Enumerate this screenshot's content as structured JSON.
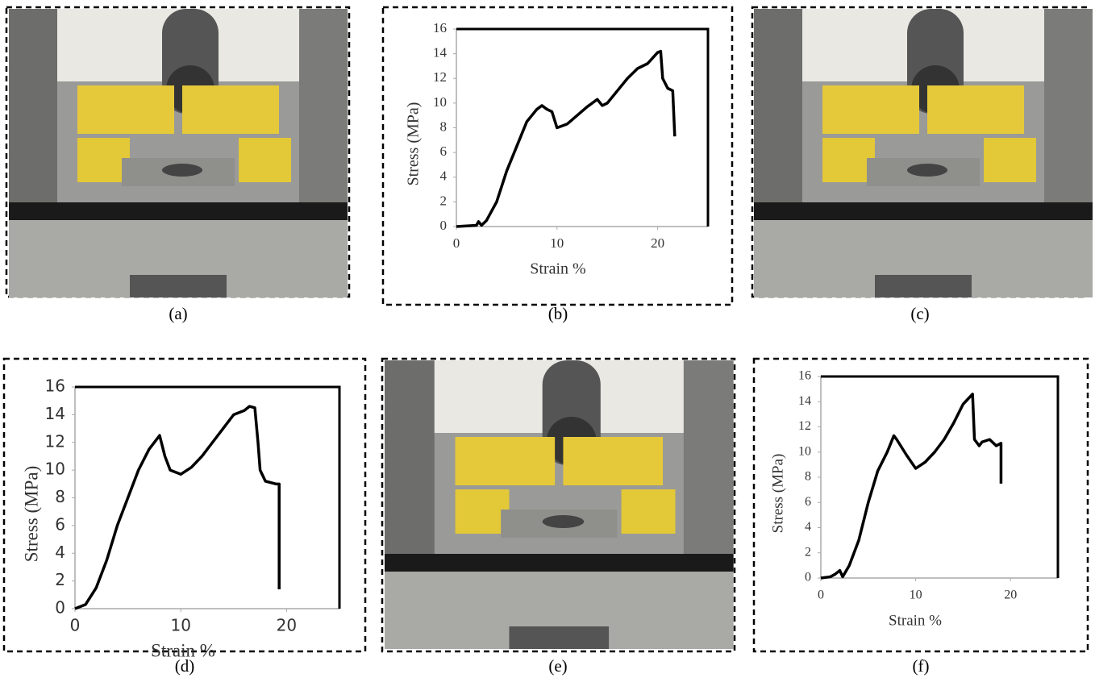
{
  "captions": [
    "(a)",
    "(b)",
    "(c)",
    "(d)",
    "(e)",
    "(f)"
  ],
  "chart_data": [
    {
      "type": "line",
      "xlabel": "Strain %",
      "ylabel": "Stress (MPa)",
      "color": "#000000",
      "xlim": [
        0,
        25
      ],
      "ylim": [
        0,
        16
      ],
      "xticks": [
        0,
        10,
        20
      ],
      "yticks": [
        0,
        2,
        4,
        6,
        8,
        10,
        12,
        14,
        16
      ],
      "x": [
        0,
        2,
        2.2,
        2.5,
        3,
        4,
        5,
        6,
        7,
        7.5,
        8,
        8.5,
        9,
        9.5,
        10,
        11,
        12,
        13,
        14,
        14.5,
        15,
        16,
        17,
        18,
        19,
        20,
        20.3,
        20.5,
        21,
        21.5,
        21.7
      ],
      "values": [
        0,
        0.1,
        0.4,
        0.1,
        0.5,
        2,
        4.5,
        6.5,
        8.5,
        9,
        9.5,
        9.8,
        9.5,
        9.3,
        8,
        8.3,
        9,
        9.7,
        10.3,
        9.8,
        10,
        11,
        12,
        12.8,
        13.2,
        14.1,
        14.2,
        12,
        11.2,
        11,
        7.3
      ]
    },
    {
      "type": "line",
      "xlabel": "Strain %",
      "ylabel": "Stress (MPa)",
      "color": "#000000",
      "xlim": [
        0,
        25
      ],
      "ylim": [
        0,
        16
      ],
      "xticks": [
        0,
        10,
        20
      ],
      "yticks": [
        0,
        2,
        4,
        6,
        8,
        10,
        12,
        14,
        16
      ],
      "x": [
        0,
        1,
        2,
        3,
        4,
        5,
        6,
        7,
        8,
        8.5,
        9,
        10,
        11,
        12,
        13,
        14,
        15,
        16,
        16.5,
        17,
        17.3,
        17.5,
        18,
        19,
        19.3,
        19.3
      ],
      "values": [
        0,
        0.3,
        1.5,
        3.5,
        6,
        8,
        10,
        11.5,
        12.5,
        11,
        10,
        9.7,
        10.2,
        11,
        12,
        13,
        14,
        14.3,
        14.6,
        14.5,
        12,
        10,
        9.2,
        9,
        9,
        1.4
      ]
    },
    {
      "type": "line",
      "xlabel": "Strain %",
      "ylabel": "Stress (MPa)",
      "color": "#000000",
      "xlim": [
        0,
        25
      ],
      "ylim": [
        0,
        16
      ],
      "xticks": [
        0,
        10,
        20
      ],
      "yticks": [
        0,
        2,
        4,
        6,
        8,
        10,
        12,
        14,
        16
      ],
      "x": [
        0,
        1,
        1.5,
        2,
        2.3,
        3,
        4,
        5,
        6,
        7,
        7.7,
        8,
        9,
        10,
        11,
        12,
        13,
        14,
        15,
        16,
        16.2,
        16.7,
        17,
        17.8,
        18.5,
        19,
        19
      ],
      "values": [
        0,
        0.1,
        0.3,
        0.6,
        0.1,
        1,
        3,
        6,
        8.5,
        10,
        11.3,
        11,
        9.8,
        8.7,
        9.2,
        10,
        11,
        12.3,
        13.8,
        14.6,
        11,
        10.5,
        10.8,
        11,
        10.5,
        10.7,
        7.5
      ]
    }
  ]
}
